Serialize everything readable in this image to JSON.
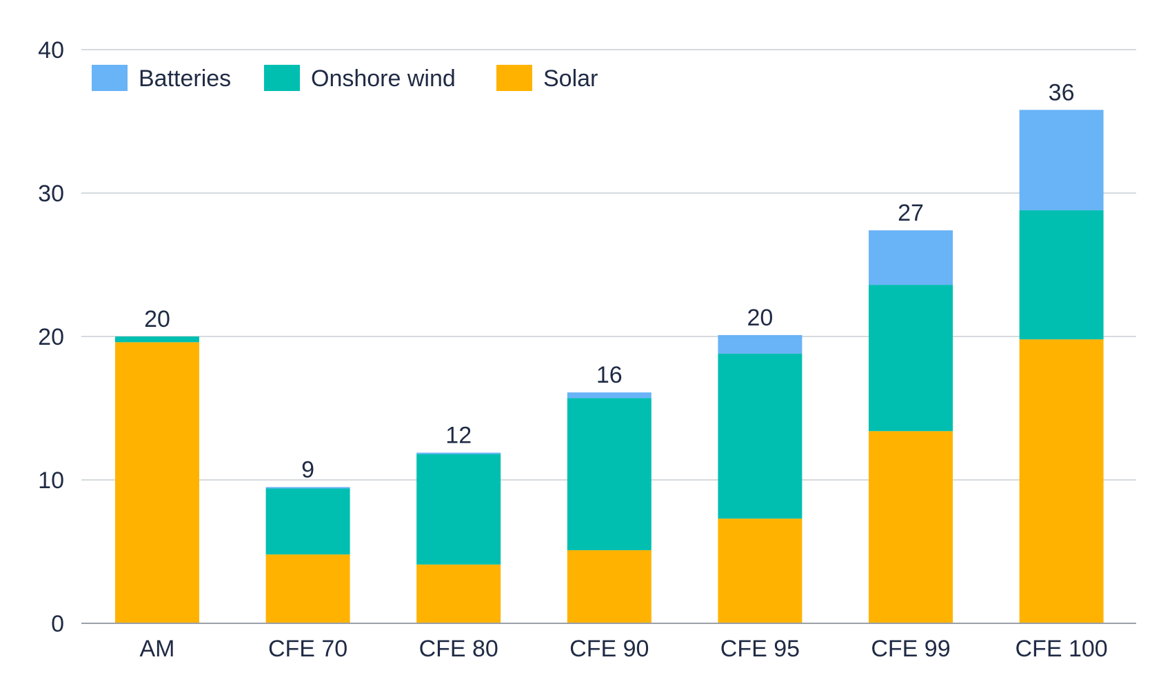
{
  "chart_data": {
    "type": "bar",
    "stacked": true,
    "title": "",
    "xlabel": "",
    "ylabel": "",
    "ylim": [
      0,
      40
    ],
    "yticks": [
      "0",
      "10",
      "20",
      "30",
      "40"
    ],
    "grid": true,
    "legend_position": "top-left",
    "categories": [
      "AM",
      "CFE 70",
      "CFE 80",
      "CFE 90",
      "CFE 95",
      "CFE 99",
      "CFE 100"
    ],
    "series": [
      {
        "name": "Solar",
        "color": "#FFB300",
        "values": [
          19.6,
          4.8,
          4.1,
          5.1,
          7.3,
          13.4,
          19.8
        ]
      },
      {
        "name": "Onshore wind",
        "color": "#00BFB0",
        "values": [
          0.4,
          4.6,
          7.7,
          10.6,
          11.5,
          10.2,
          9.0
        ]
      },
      {
        "name": "Batteries",
        "color": "#69B3F7",
        "values": [
          0.0,
          0.1,
          0.1,
          0.4,
          1.3,
          3.8,
          7.0
        ]
      }
    ],
    "totals": [
      "20",
      "9",
      "12",
      "16",
      "20",
      "27",
      "36"
    ],
    "legend_order": [
      "Batteries",
      "Onshore wind",
      "Solar"
    ]
  }
}
